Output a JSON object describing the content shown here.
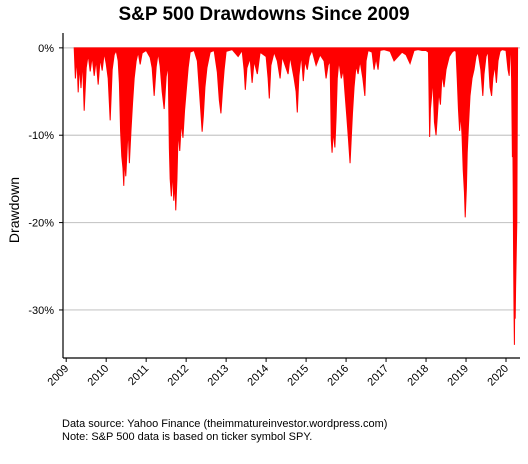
{
  "chart_data": {
    "type": "area",
    "title": "S&P 500 Drawdowns Since 2009",
    "xlabel": "",
    "ylabel": "Drawdown",
    "xlim": [
      2008.92,
      2020.35
    ],
    "ylim": [
      -35.5,
      1.7
    ],
    "y_ticks": [
      0,
      -10,
      -20,
      -30
    ],
    "y_tick_labels": [
      "0%",
      "-10%",
      "-20%",
      "-30%"
    ],
    "x_ticks": [
      2009,
      2010,
      2011,
      2012,
      2013,
      2014,
      2015,
      2016,
      2017,
      2018,
      2019,
      2020
    ],
    "x_tick_labels": [
      "2009",
      "2010",
      "2011",
      "2012",
      "2013",
      "2014",
      "2015",
      "2016",
      "2017",
      "2018",
      "2019",
      "2020"
    ],
    "grid": "horizontal",
    "color": "#ff0000",
    "series": [
      {
        "values": [
          [
            2009.2,
            0
          ],
          [
            2009.23,
            -3.5
          ],
          [
            2009.27,
            -1.2
          ],
          [
            2009.3,
            -5.1
          ],
          [
            2009.33,
            -2.0
          ],
          [
            2009.37,
            -4.6
          ],
          [
            2009.41,
            -1.5
          ],
          [
            2009.45,
            -7.2
          ],
          [
            2009.5,
            -2.3
          ],
          [
            2009.55,
            -0.8
          ],
          [
            2009.6,
            -2.7
          ],
          [
            2009.65,
            -1.0
          ],
          [
            2009.7,
            -3.2
          ],
          [
            2009.75,
            -1.4
          ],
          [
            2009.8,
            -4.2
          ],
          [
            2009.85,
            -1.2
          ],
          [
            2009.9,
            -2.6
          ],
          [
            2009.95,
            -0.6
          ],
          [
            2010.0,
            -1.8
          ],
          [
            2010.05,
            -3.5
          ],
          [
            2010.1,
            -8.3
          ],
          [
            2010.15,
            -2.5
          ],
          [
            2010.2,
            -0.8
          ],
          [
            2010.25,
            -0.3
          ],
          [
            2010.3,
            -1.5
          ],
          [
            2010.33,
            -4.0
          ],
          [
            2010.36,
            -9.5
          ],
          [
            2010.39,
            -12.4
          ],
          [
            2010.42,
            -13.8
          ],
          [
            2010.44,
            -15.8
          ],
          [
            2010.46,
            -12.8
          ],
          [
            2010.49,
            -14.7
          ],
          [
            2010.52,
            -12.0
          ],
          [
            2010.55,
            -9.2
          ],
          [
            2010.58,
            -13.2
          ],
          [
            2010.62,
            -9.5
          ],
          [
            2010.66,
            -6.3
          ],
          [
            2010.7,
            -3.5
          ],
          [
            2010.75,
            -1.5
          ],
          [
            2010.8,
            -0.5
          ],
          [
            2010.85,
            -1.9
          ],
          [
            2010.9,
            -0.6
          ],
          [
            2011.0,
            -0.3
          ],
          [
            2011.1,
            -1.1
          ],
          [
            2011.15,
            -2.3
          ],
          [
            2011.2,
            -5.5
          ],
          [
            2011.25,
            -2.2
          ],
          [
            2011.3,
            -0.6
          ],
          [
            2011.35,
            -2.1
          ],
          [
            2011.4,
            -5.0
          ],
          [
            2011.45,
            -7.0
          ],
          [
            2011.5,
            -3.3
          ],
          [
            2011.55,
            -2.0
          ],
          [
            2011.58,
            -11.5
          ],
          [
            2011.6,
            -15.0
          ],
          [
            2011.63,
            -17.0
          ],
          [
            2011.66,
            -14.0
          ],
          [
            2011.69,
            -17.5
          ],
          [
            2011.72,
            -15.5
          ],
          [
            2011.74,
            -18.6
          ],
          [
            2011.77,
            -15.0
          ],
          [
            2011.8,
            -9.5
          ],
          [
            2011.84,
            -11.8
          ],
          [
            2011.88,
            -8.5
          ],
          [
            2011.92,
            -10.3
          ],
          [
            2011.96,
            -7.2
          ],
          [
            2012.0,
            -5.0
          ],
          [
            2012.05,
            -2.3
          ],
          [
            2012.1,
            -0.5
          ],
          [
            2012.2,
            -0.3
          ],
          [
            2012.28,
            -1.5
          ],
          [
            2012.33,
            -4.8
          ],
          [
            2012.37,
            -7.5
          ],
          [
            2012.4,
            -9.6
          ],
          [
            2012.43,
            -7.8
          ],
          [
            2012.47,
            -4.5
          ],
          [
            2012.52,
            -2.3
          ],
          [
            2012.6,
            -0.5
          ],
          [
            2012.7,
            -0.3
          ],
          [
            2012.78,
            -2.8
          ],
          [
            2012.83,
            -6.0
          ],
          [
            2012.87,
            -7.5
          ],
          [
            2012.91,
            -4.8
          ],
          [
            2012.95,
            -2.5
          ],
          [
            2013.0,
            -0.4
          ],
          [
            2013.15,
            -0.2
          ],
          [
            2013.3,
            -1.0
          ],
          [
            2013.4,
            -0.3
          ],
          [
            2013.45,
            -2.5
          ],
          [
            2013.48,
            -4.8
          ],
          [
            2013.52,
            -2.3
          ],
          [
            2013.6,
            -1.2
          ],
          [
            2013.65,
            -4.0
          ],
          [
            2013.7,
            -1.5
          ],
          [
            2013.78,
            -3.0
          ],
          [
            2013.85,
            -0.5
          ],
          [
            2014.0,
            -1.0
          ],
          [
            2014.05,
            -3.5
          ],
          [
            2014.08,
            -5.8
          ],
          [
            2014.12,
            -2.0
          ],
          [
            2014.2,
            -0.5
          ],
          [
            2014.28,
            -1.5
          ],
          [
            2014.35,
            -3.5
          ],
          [
            2014.4,
            -1.0
          ],
          [
            2014.55,
            -3.0
          ],
          [
            2014.6,
            -1.0
          ],
          [
            2014.7,
            -3.5
          ],
          [
            2014.75,
            -5.0
          ],
          [
            2014.78,
            -7.4
          ],
          [
            2014.82,
            -3.2
          ],
          [
            2014.88,
            -0.8
          ],
          [
            2014.93,
            -3.8
          ],
          [
            2014.97,
            -1.5
          ],
          [
            2015.03,
            -2.5
          ],
          [
            2015.08,
            -1.0
          ],
          [
            2015.15,
            -0.3
          ],
          [
            2015.25,
            -2.0
          ],
          [
            2015.35,
            -0.8
          ],
          [
            2015.45,
            -1.5
          ],
          [
            2015.5,
            -3.5
          ],
          [
            2015.55,
            -2.0
          ],
          [
            2015.6,
            -1.5
          ],
          [
            2015.63,
            -10.5
          ],
          [
            2015.65,
            -12.0
          ],
          [
            2015.68,
            -9.5
          ],
          [
            2015.72,
            -11.4
          ],
          [
            2015.75,
            -8.0
          ],
          [
            2015.78,
            -3.5
          ],
          [
            2015.82,
            -1.5
          ],
          [
            2015.88,
            -3.5
          ],
          [
            2015.93,
            -2.5
          ],
          [
            2015.97,
            -5.0
          ],
          [
            2016.02,
            -8.0
          ],
          [
            2016.06,
            -10.5
          ],
          [
            2016.1,
            -13.2
          ],
          [
            2016.13,
            -10.3
          ],
          [
            2016.16,
            -7.5
          ],
          [
            2016.2,
            -4.5
          ],
          [
            2016.25,
            -2.0
          ],
          [
            2016.3,
            -3.0
          ],
          [
            2016.35,
            -1.5
          ],
          [
            2016.42,
            -3.5
          ],
          [
            2016.47,
            -5.5
          ],
          [
            2016.5,
            -1.5
          ],
          [
            2016.55,
            -0.3
          ],
          [
            2016.65,
            -0.5
          ],
          [
            2016.7,
            -2.5
          ],
          [
            2016.75,
            -1.2
          ],
          [
            2016.8,
            -2.5
          ],
          [
            2016.85,
            -0.3
          ],
          [
            2016.95,
            -0.2
          ],
          [
            2017.1,
            -0.4
          ],
          [
            2017.2,
            -1.5
          ],
          [
            2017.3,
            -1.0
          ],
          [
            2017.4,
            -0.5
          ],
          [
            2017.5,
            -0.8
          ],
          [
            2017.6,
            -1.8
          ],
          [
            2017.7,
            -0.3
          ],
          [
            2017.8,
            -0.2
          ],
          [
            2017.9,
            -0.3
          ],
          [
            2018.0,
            -0.3
          ],
          [
            2018.06,
            -0.5
          ],
          [
            2018.09,
            -10.2
          ],
          [
            2018.11,
            -7.0
          ],
          [
            2018.14,
            -5.5
          ],
          [
            2018.17,
            -3.5
          ],
          [
            2018.21,
            -8.5
          ],
          [
            2018.25,
            -10.0
          ],
          [
            2018.28,
            -8.0
          ],
          [
            2018.32,
            -5.0
          ],
          [
            2018.36,
            -6.5
          ],
          [
            2018.4,
            -3.0
          ],
          [
            2018.45,
            -4.5
          ],
          [
            2018.5,
            -2.5
          ],
          [
            2018.58,
            -1.0
          ],
          [
            2018.65,
            -0.5
          ],
          [
            2018.7,
            -0.3
          ],
          [
            2018.75,
            -0.4
          ],
          [
            2018.78,
            -3.5
          ],
          [
            2018.81,
            -7.0
          ],
          [
            2018.84,
            -9.5
          ],
          [
            2018.87,
            -7.5
          ],
          [
            2018.9,
            -10.0
          ],
          [
            2018.93,
            -14.0
          ],
          [
            2018.96,
            -16.5
          ],
          [
            2018.98,
            -19.4
          ],
          [
            2019.01,
            -16.0
          ],
          [
            2019.03,
            -12.0
          ],
          [
            2019.06,
            -9.0
          ],
          [
            2019.1,
            -5.5
          ],
          [
            2019.15,
            -3.5
          ],
          [
            2019.2,
            -2.5
          ],
          [
            2019.25,
            -1.0
          ],
          [
            2019.3,
            -0.5
          ],
          [
            2019.37,
            -2.5
          ],
          [
            2019.42,
            -5.5
          ],
          [
            2019.45,
            -3.0
          ],
          [
            2019.5,
            -1.0
          ],
          [
            2019.55,
            -0.4
          ],
          [
            2019.6,
            -4.5
          ],
          [
            2019.64,
            -5.5
          ],
          [
            2019.67,
            -3.5
          ],
          [
            2019.72,
            -2.0
          ],
          [
            2019.76,
            -4.0
          ],
          [
            2019.8,
            -1.5
          ],
          [
            2019.85,
            -0.4
          ],
          [
            2019.9,
            -0.2
          ],
          [
            2020.0,
            -0.3
          ],
          [
            2020.05,
            -2.5
          ],
          [
            2020.08,
            -3.2
          ],
          [
            2020.1,
            -0.5
          ],
          [
            2020.12,
            -0.3
          ],
          [
            2020.14,
            -3.5
          ],
          [
            2020.16,
            -12.5
          ],
          [
            2020.17,
            -10.0
          ],
          [
            2020.18,
            -16.0
          ],
          [
            2020.19,
            -24.0
          ],
          [
            2020.2,
            -30.0
          ],
          [
            2020.21,
            -34.0
          ],
          [
            2020.22,
            -28.0
          ],
          [
            2020.23,
            -31.0
          ],
          [
            2020.24,
            -27.5
          ],
          [
            2020.25,
            -25.0
          ],
          [
            2020.26,
            -22.5
          ],
          [
            2020.27,
            -20.0
          ],
          [
            2020.29,
            0
          ]
        ]
      }
    ]
  },
  "captions": {
    "source": "Data source: Yahoo Finance (theimmatureinvestor.wordpress.com)",
    "note": "Note: S&P 500 data is based on ticker symbol SPY."
  }
}
